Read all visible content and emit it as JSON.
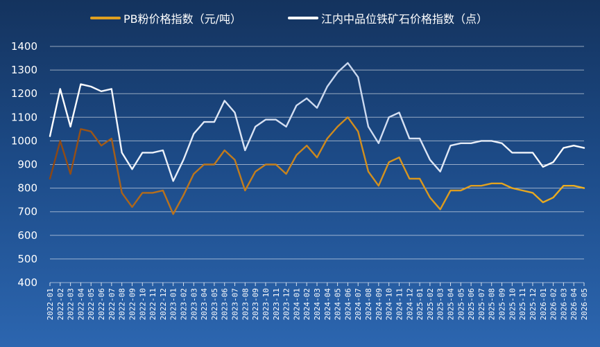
{
  "chart_data": {
    "type": "line",
    "title": "",
    "xlabel": "",
    "ylabel": "",
    "ylim": [
      400,
      1400
    ],
    "yticks": [
      400,
      500,
      600,
      700,
      800,
      900,
      1000,
      1100,
      1200,
      1300,
      1400
    ],
    "grid": "horizontal",
    "legend_position": "top",
    "categories": [
      "2022-01",
      "2022-02",
      "2022-03",
      "2022-04",
      "2022-05",
      "2022-06",
      "2022-07",
      "2022-08",
      "2022-09",
      "2022-10",
      "2022-11",
      "2022-12",
      "2023-01",
      "2023-02",
      "2023-03",
      "2023-04",
      "2023-05",
      "2023-06",
      "2023-07",
      "2023-08",
      "2023-09",
      "2023-10",
      "2023-11",
      "2023-12",
      "2024-01",
      "2024-02",
      "2024-03",
      "2024-04",
      "2024-05",
      "2024-06",
      "2024-07",
      "2024-08",
      "2024-09",
      "2024-10",
      "2024-11",
      "2024-12",
      "2025-01",
      "2025-02",
      "2025-03",
      "2025-04",
      "2025-05",
      "2025-06",
      "2025-07",
      "2025-08",
      "2025-09",
      "2025-10",
      "2025-11",
      "2025-12",
      "2026-01",
      "2026-02",
      "2026-03",
      "2026-04",
      "2026-05"
    ],
    "series": [
      {
        "name": "PB粉价格指数（元/吨）",
        "color": "#e0a020",
        "color_start": "#a0522d",
        "values": [
          840,
          1000,
          860,
          1050,
          1040,
          980,
          1010,
          780,
          720,
          780,
          780,
          790,
          690,
          770,
          860,
          900,
          900,
          960,
          920,
          790,
          870,
          900,
          900,
          860,
          940,
          980,
          930,
          1010,
          1060,
          1100,
          1040,
          870,
          810,
          910,
          930,
          840,
          840,
          760,
          710,
          790,
          790,
          810,
          810,
          820,
          820,
          800,
          790,
          780,
          740,
          760,
          810,
          810,
          800
        ]
      },
      {
        "name": "江内中品位铁矿石价格指数（点）",
        "color": "#ffffff",
        "values": [
          1020,
          1220,
          1060,
          1240,
          1230,
          1210,
          1220,
          950,
          880,
          950,
          950,
          960,
          830,
          920,
          1030,
          1080,
          1080,
          1170,
          1120,
          960,
          1060,
          1090,
          1090,
          1060,
          1150,
          1180,
          1140,
          1230,
          1290,
          1330,
          1270,
          1060,
          990,
          1100,
          1120,
          1010,
          1010,
          920,
          870,
          980,
          990,
          990,
          1000,
          1000,
          990,
          950,
          950,
          950,
          890,
          910,
          970,
          980,
          970
        ]
      }
    ]
  }
}
